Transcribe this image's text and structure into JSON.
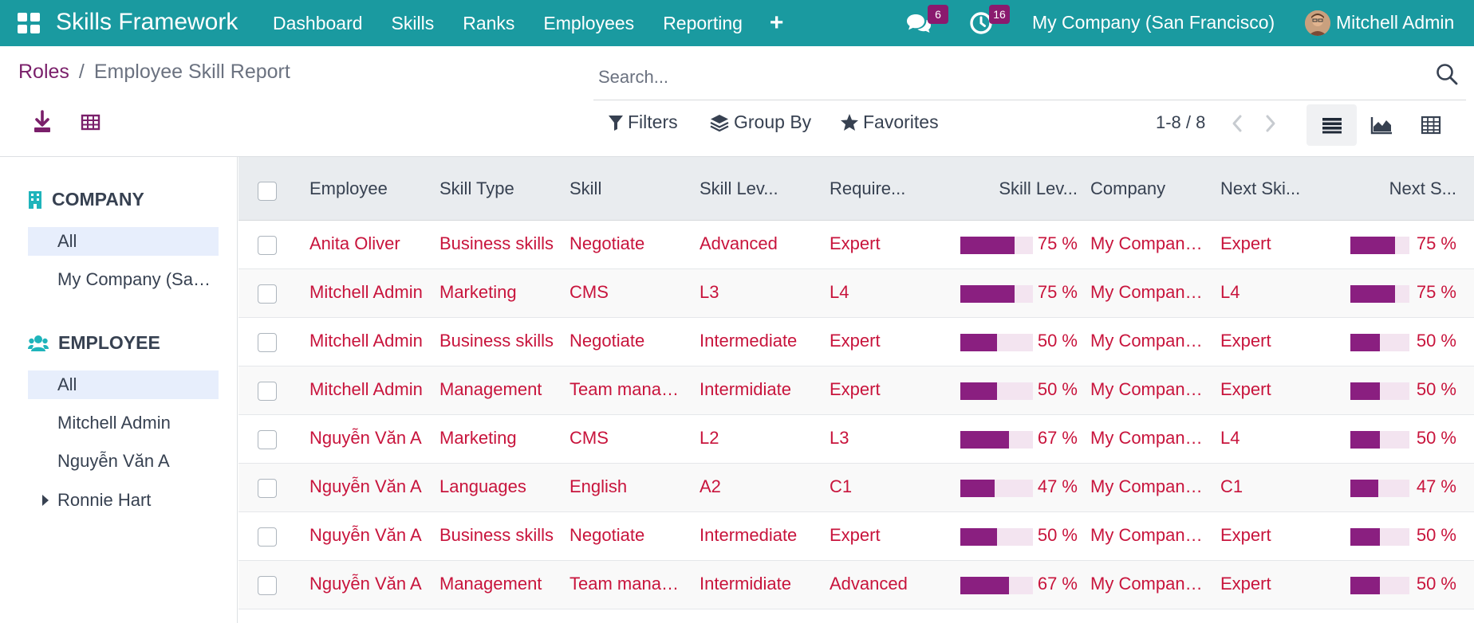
{
  "navbar": {
    "app_title": "Skills Framework",
    "menu": [
      "Dashboard",
      "Skills",
      "Ranks",
      "Employees",
      "Reporting"
    ],
    "plus_label": "+",
    "messages_count": "6",
    "activities_count": "16",
    "company": "My Company (San Francisco)",
    "user": "Mitchell Admin"
  },
  "breadcrumb": {
    "parent": "Roles",
    "separator": "/",
    "current": "Employee Skill Report"
  },
  "search": {
    "placeholder": "Search..."
  },
  "filters": {
    "filters_label": "Filters",
    "groupby_label": "Group By",
    "favorites_label": "Favorites"
  },
  "pager": {
    "text": "1-8 / 8"
  },
  "sidebar": {
    "company_header": "COMPANY",
    "company_items": [
      "All",
      "My Company (San Francisco)"
    ],
    "employee_header": "EMPLOYEE",
    "employee_items": [
      "All",
      "Mitchell Admin",
      "Nguyễn Văn A",
      "Ronnie Hart"
    ]
  },
  "table": {
    "columns": [
      "Employee",
      "Skill Type",
      "Skill",
      "Skill Lev...",
      "Require...",
      "Skill Lev...",
      "Company",
      "Next Ski...",
      "Next S..."
    ],
    "rows": [
      {
        "employee": "Anita Oliver",
        "skill_type": "Business skills",
        "skill": "Negotiate",
        "level": "Advanced",
        "required": "Expert",
        "progress": 75,
        "progress_label": "75 %",
        "company": "My Company (San Francisco)",
        "next_level": "Expert",
        "next_progress": 75,
        "next_progress_label": "75 %"
      },
      {
        "employee": "Mitchell Admin",
        "skill_type": "Marketing",
        "skill": "CMS",
        "level": "L3",
        "required": "L4",
        "progress": 75,
        "progress_label": "75 %",
        "company": "My Company (San Francisco)",
        "next_level": "L4",
        "next_progress": 75,
        "next_progress_label": "75 %"
      },
      {
        "employee": "Mitchell Admin",
        "skill_type": "Business skills",
        "skill": "Negotiate",
        "level": "Intermediate",
        "required": "Expert",
        "progress": 50,
        "progress_label": "50 %",
        "company": "My Company (San Francisco)",
        "next_level": "Expert",
        "next_progress": 50,
        "next_progress_label": "50 %"
      },
      {
        "employee": "Mitchell Admin",
        "skill_type": "Management",
        "skill": "Team management",
        "level": "Intermidiate",
        "required": "Expert",
        "progress": 50,
        "progress_label": "50 %",
        "company": "My Company (San Francisco)",
        "next_level": "Expert",
        "next_progress": 50,
        "next_progress_label": "50 %"
      },
      {
        "employee": "Nguyễn Văn A",
        "skill_type": "Marketing",
        "skill": "CMS",
        "level": "L2",
        "required": "L3",
        "progress": 67,
        "progress_label": "67 %",
        "company": "My Company (San Francisco)",
        "next_level": "L4",
        "next_progress": 50,
        "next_progress_label": "50 %"
      },
      {
        "employee": "Nguyễn Văn A",
        "skill_type": "Languages",
        "skill": "English",
        "level": "A2",
        "required": "C1",
        "progress": 47,
        "progress_label": "47 %",
        "company": "My Company (San Francisco)",
        "next_level": "C1",
        "next_progress": 47,
        "next_progress_label": "47 %"
      },
      {
        "employee": "Nguyễn Văn A",
        "skill_type": "Business skills",
        "skill": "Negotiate",
        "level": "Intermediate",
        "required": "Expert",
        "progress": 50,
        "progress_label": "50 %",
        "company": "My Company (San Francisco)",
        "next_level": "Expert",
        "next_progress": 50,
        "next_progress_label": "50 %"
      },
      {
        "employee": "Nguyễn Văn A",
        "skill_type": "Management",
        "skill": "Team management",
        "level": "Intermidiate",
        "required": "Advanced",
        "progress": 67,
        "progress_label": "67 %",
        "company": "My Company (San Francisco)",
        "next_level": "Expert",
        "next_progress": 50,
        "next_progress_label": "50 %"
      }
    ]
  },
  "colors": {
    "navbar": "#1a9aa0",
    "brand": "#7a1f6a",
    "link_red": "#c8143c",
    "progress_fill": "#8a1f80",
    "progress_track": "#f3e4f0",
    "badge": "#8a1a6e"
  }
}
